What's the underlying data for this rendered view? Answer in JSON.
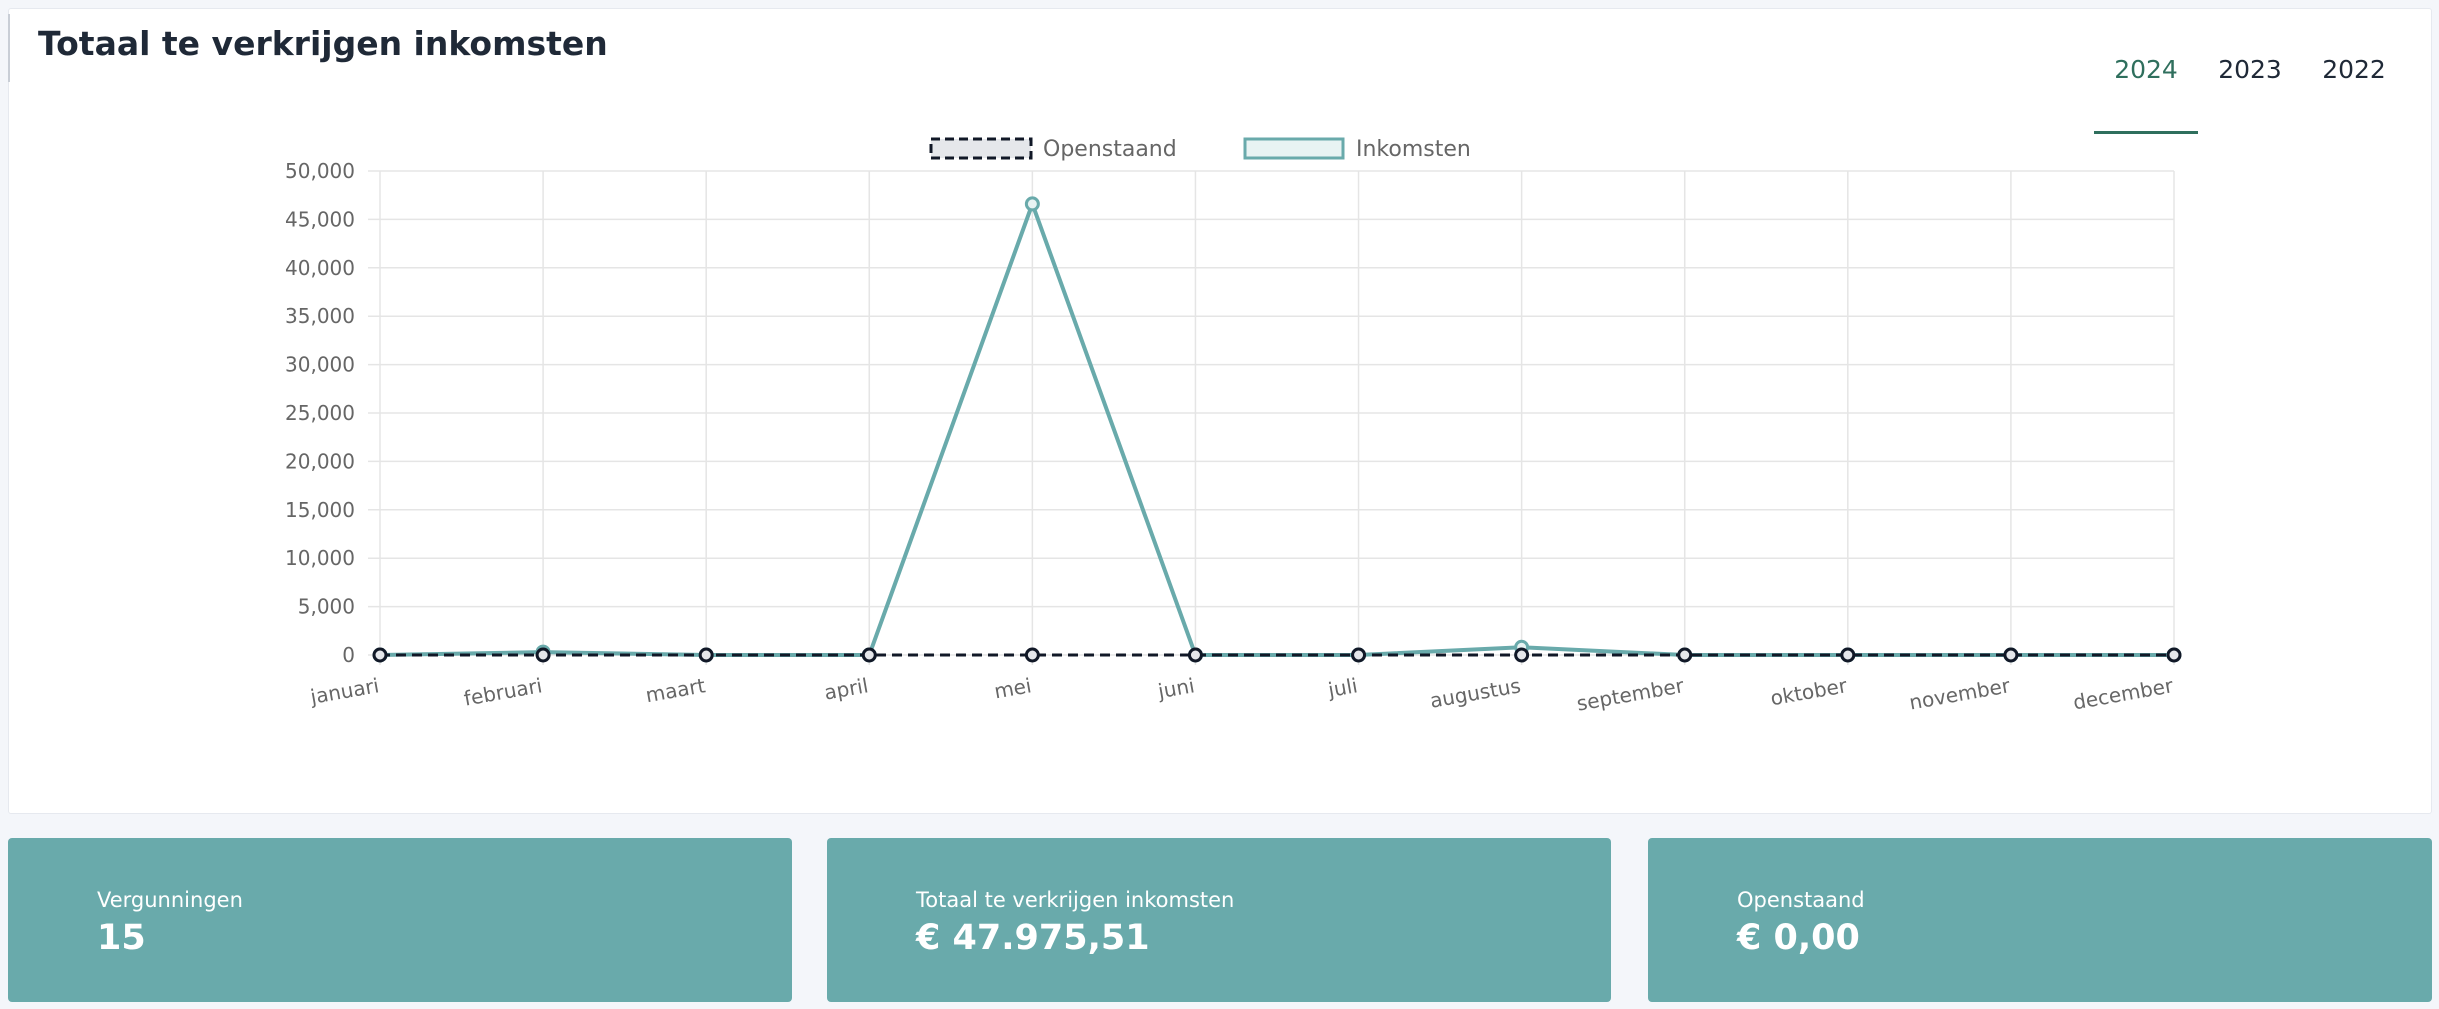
{
  "header": {
    "title": "Totaal te verkrijgen inkomsten"
  },
  "tabs": [
    {
      "label": "2024",
      "active": true
    },
    {
      "label": "2023",
      "active": false
    },
    {
      "label": "2022",
      "active": false
    }
  ],
  "colors": {
    "accent": "#69aaab",
    "tab_active": "#2f6f5d",
    "openstaand_line": "#111827"
  },
  "chart_data": {
    "type": "line",
    "categories": [
      "januari",
      "februari",
      "maart",
      "april",
      "mei",
      "juni",
      "juli",
      "augustus",
      "september",
      "oktober",
      "november",
      "december"
    ],
    "series": [
      {
        "name": "Openstaand",
        "values": [
          0,
          0,
          0,
          0,
          0,
          0,
          0,
          0,
          0,
          0,
          0,
          0
        ],
        "style": "dashed"
      },
      {
        "name": "Inkomsten",
        "values": [
          0,
          300,
          0,
          0,
          46600,
          0,
          0,
          800,
          0,
          0,
          0,
          0
        ],
        "style": "solid"
      }
    ],
    "yticks": [
      "0",
      "5,000",
      "10,000",
      "15,000",
      "20,000",
      "25,000",
      "30,000",
      "35,000",
      "40,000",
      "45,000",
      "50,000"
    ],
    "ylim": [
      0,
      50000
    ],
    "grid": true,
    "legend_position": "top"
  },
  "cards": [
    {
      "label": "Vergunningen",
      "value": "15"
    },
    {
      "label": "Totaal te verkrijgen inkomsten",
      "value": "€ 47.975,51"
    },
    {
      "label": "Openstaand",
      "value": "€ 0,00"
    }
  ]
}
